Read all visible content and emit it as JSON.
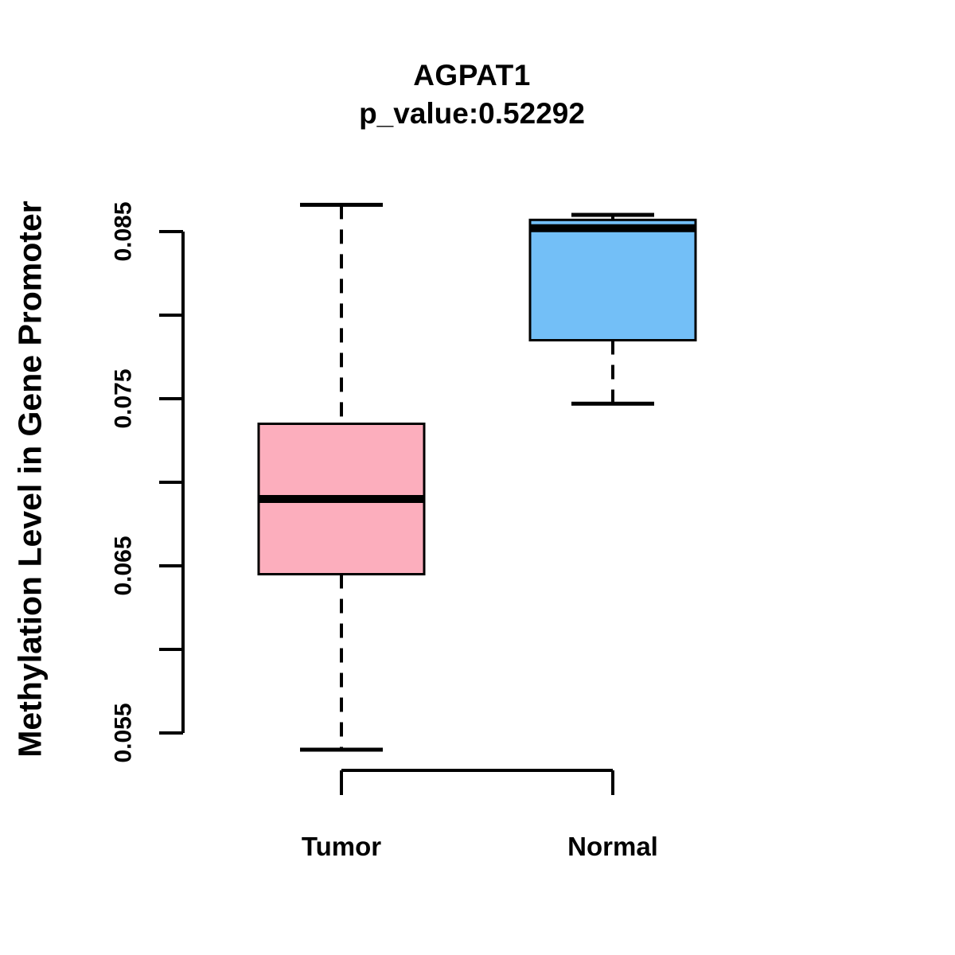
{
  "figure": {
    "background": "#ffffff",
    "text_color": "#000000",
    "axis_color": "#000000"
  },
  "chart_data": {
    "type": "boxplot",
    "title": "AGPAT1",
    "subtitle": "p_value:0.52292",
    "ylabel": "Methylation Level in Gene Promoter",
    "xlabel": "",
    "categories": [
      "Tumor",
      "Normal"
    ],
    "series": [
      {
        "name": "Tumor",
        "color": "#FCAEBD",
        "min": 0.054,
        "q1": 0.0645,
        "median": 0.069,
        "q3": 0.0735,
        "max": 0.0866
      },
      {
        "name": "Normal",
        "color": "#73BFF7",
        "min": 0.0747,
        "q1": 0.0785,
        "median": 0.0852,
        "q3": 0.0857,
        "max": 0.086
      }
    ],
    "y_axis": {
      "labeled_ticks": [
        {
          "value": 0.085,
          "label": "0.085"
        },
        {
          "value": 0.075,
          "label": "0.075"
        },
        {
          "value": 0.065,
          "label": "0.065"
        },
        {
          "value": 0.055,
          "label": "0.055"
        }
      ],
      "minor_ticks": [
        0.08,
        0.07,
        0.06
      ],
      "range": [
        0.055,
        0.085
      ]
    },
    "grid": false,
    "legend": false
  }
}
